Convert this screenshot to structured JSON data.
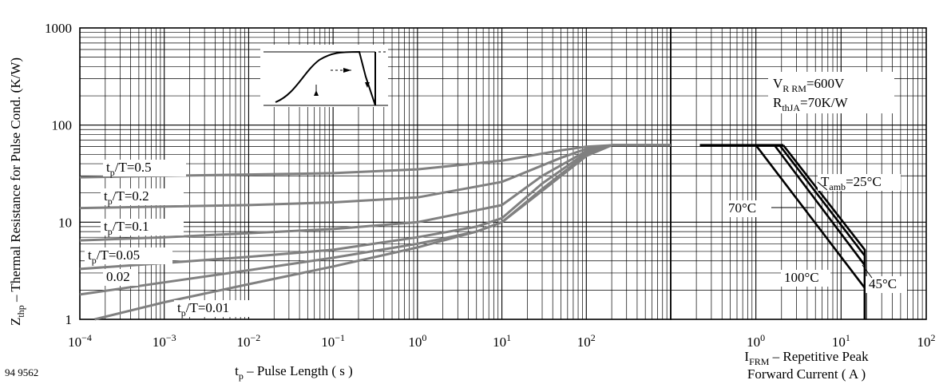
{
  "figure_id": "94 9562",
  "chart_data": [
    {
      "type": "line",
      "title": "",
      "xscale": "log",
      "yscale": "log",
      "xlim": [
        0.0001,
        1000
      ],
      "ylim": [
        1,
        1000
      ],
      "grid": true,
      "ylabel": {
        "main": "Z",
        "sub": "thp",
        "rest": " – Thermal Resistance for Pulse Cond. (K/W)"
      },
      "xlabel": {
        "main": "t",
        "sub": "p",
        "rest": " – Pulse Length ( s )"
      },
      "x_ticks": [
        {
          "value": 0.0001,
          "base": "10",
          "exp": "−4"
        },
        {
          "value": 0.001,
          "base": "10",
          "exp": "−3"
        },
        {
          "value": 0.01,
          "base": "10",
          "exp": "−2"
        },
        {
          "value": 0.1,
          "base": "10",
          "exp": "−1"
        },
        {
          "value": 1,
          "base": "10",
          "exp": "0"
        },
        {
          "value": 10,
          "base": "10",
          "exp": "1"
        },
        {
          "value": 100,
          "base": "10",
          "exp": "2"
        }
      ],
      "y_ticks": [
        {
          "value": 1,
          "label": "1"
        },
        {
          "value": 10,
          "label": "10"
        },
        {
          "value": 100,
          "label": "100"
        },
        {
          "value": 1000,
          "label": "1000"
        }
      ],
      "series": [
        {
          "name": "t_p/T=0.5",
          "x": [
            0.0001,
            0.001,
            0.01,
            0.1,
            1,
            10,
            50,
            100,
            200,
            1000
          ],
          "y": [
            29,
            30,
            31,
            32,
            35,
            43,
            55,
            60,
            62,
            62
          ]
        },
        {
          "name": "t_p/T=0.2",
          "x": [
            0.0001,
            0.001,
            0.01,
            0.1,
            1,
            10,
            50,
            100,
            200,
            1000
          ],
          "y": [
            14,
            14.5,
            15,
            16,
            18,
            26,
            46,
            57,
            62,
            62
          ]
        },
        {
          "name": "t_p/T=0.1",
          "x": [
            0.0001,
            0.001,
            0.01,
            0.1,
            1,
            10,
            30,
            100,
            200,
            1000
          ],
          "y": [
            6.5,
            7,
            7.7,
            8.5,
            10,
            15,
            30,
            54,
            62,
            62
          ]
        },
        {
          "name": "t_p/T=0.05",
          "x": [
            0.0001,
            0.001,
            0.01,
            0.1,
            1,
            5,
            10,
            30,
            100,
            200,
            1000
          ],
          "y": [
            3.3,
            3.8,
            4.4,
            5.2,
            7,
            9,
            11,
            25,
            52,
            62,
            62
          ]
        },
        {
          "name": "0.02",
          "x": [
            0.0001,
            0.001,
            0.01,
            0.1,
            1,
            5,
            10,
            30,
            100,
            200,
            1000
          ],
          "y": [
            1.8,
            2.4,
            3.2,
            4.3,
            6,
            8,
            10,
            22,
            50,
            62,
            62
          ]
        },
        {
          "name": "t_p/T=0.01",
          "x": [
            0.00015,
            0.001,
            0.01,
            0.1,
            1,
            5,
            10,
            30,
            100,
            200,
            1000
          ],
          "y": [
            1,
            1.5,
            2.3,
            3.5,
            5.5,
            8,
            10,
            21,
            48,
            62,
            62
          ]
        }
      ],
      "annotations": [
        {
          "main": "t",
          "sub": "p",
          "rest": "/T=0.5"
        },
        {
          "main": "t",
          "sub": "p",
          "rest": "/T=0.2"
        },
        {
          "main": "t",
          "sub": "p",
          "rest": "/T=0.1"
        },
        {
          "main": "t",
          "sub": "p",
          "rest": "/T=0.05"
        },
        {
          "main": "0.02",
          "sub": "",
          "rest": ""
        },
        {
          "main": "t",
          "sub": "p",
          "rest": "/T=0.01"
        }
      ]
    },
    {
      "type": "line",
      "title": "",
      "xscale": "log",
      "yscale": "log",
      "xlim": [
        0.1,
        100
      ],
      "ylim": [
        1,
        1000
      ],
      "grid": true,
      "xlabel": {
        "line1_main": "I",
        "line1_sub": "FRM",
        "line1_rest": " – Repetitive Peak",
        "line2": "Forward Current ( A )"
      },
      "x_ticks": [
        {
          "value": 1,
          "base": "10",
          "exp": "0"
        },
        {
          "value": 10,
          "base": "10",
          "exp": "1"
        },
        {
          "value": 100,
          "base": "10",
          "exp": "2"
        }
      ],
      "conditions": [
        {
          "main": "V",
          "sub": "R RM",
          "rest": "=600V"
        },
        {
          "main": "R",
          "sub": "thJA",
          "rest": "=70K/W"
        }
      ],
      "series": [
        {
          "name": "T_amb=25°C",
          "x": [
            2.1,
            19,
            19
          ],
          "y": [
            62,
            5.2,
            1
          ]
        },
        {
          "name": "45°C",
          "x": [
            1.9,
            19,
            19
          ],
          "y": [
            62,
            4.5,
            1
          ]
        },
        {
          "name": "70°C",
          "x": [
            1.65,
            19,
            19
          ],
          "y": [
            62,
            3.6,
            1
          ]
        },
        {
          "name": "100°C",
          "x": [
            1.0,
            19,
            19
          ],
          "y": [
            62,
            2.1,
            1
          ]
        }
      ],
      "flat_segment": {
        "x": [
          0.22,
          2.1
        ],
        "y": [
          62,
          62
        ]
      },
      "annotations": [
        {
          "main": "T",
          "sub": "amb",
          "rest": "=25°C"
        },
        {
          "main": "45°C",
          "sub": "",
          "rest": ""
        },
        {
          "main": "70°C",
          "sub": "",
          "rest": ""
        },
        {
          "main": "100°C",
          "sub": "",
          "rest": ""
        }
      ]
    }
  ]
}
